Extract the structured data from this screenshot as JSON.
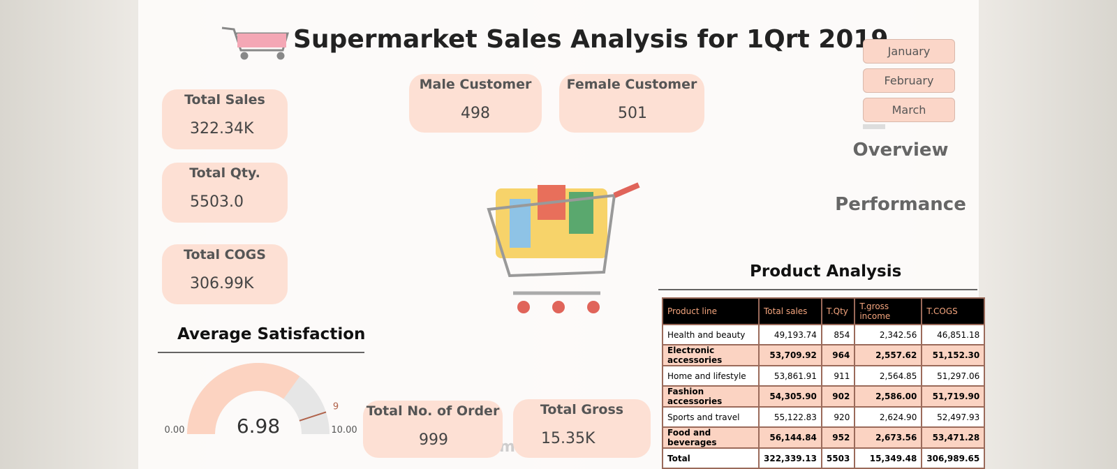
{
  "header": {
    "title": "Supermarket Sales Analysis for 1Qrt 2019"
  },
  "kpis": [
    {
      "label": "Total Sales",
      "value": "322.34K"
    },
    {
      "label": "Total Qty.",
      "value": "5503.0"
    },
    {
      "label": "Total COGS",
      "value": "306.99K"
    }
  ],
  "customers": [
    {
      "label": "Male Customer",
      "value": "498"
    },
    {
      "label": "Female Customer",
      "value": "501"
    }
  ],
  "months": [
    "January",
    "February",
    "March"
  ],
  "nav": [
    "Overview",
    "Performance"
  ],
  "satisfaction": {
    "title": "Average Satisfaction",
    "value": 6.98,
    "min": {
      "value": 0,
      "label": "0.00"
    },
    "max": {
      "value": 10,
      "label": "10.00"
    },
    "target": 9
  },
  "orders": {
    "label": "Total No. of Order",
    "value": "999"
  },
  "gross": {
    "label": "Total Gross",
    "value": "15.35K"
  },
  "product": {
    "title": "Product Analysis",
    "columns": [
      "Product line",
      "Total sales",
      "T.Qty",
      "T.gross income",
      "T.COGS"
    ],
    "rows": [
      [
        "Health and beauty",
        "49,193.74",
        "854",
        "2,342.56",
        "46,851.18"
      ],
      [
        "Electronic accessories",
        "53,709.92",
        "964",
        "2,557.62",
        "51,152.30"
      ],
      [
        "Home and lifestyle",
        "53,861.91",
        "911",
        "2,564.85",
        "51,297.06"
      ],
      [
        "Fashion accessories",
        "54,305.90",
        "902",
        "2,586.00",
        "51,719.90"
      ],
      [
        "Sports and travel",
        "55,122.83",
        "920",
        "2,624.90",
        "52,497.93"
      ],
      [
        "Food and beverages",
        "56,144.84",
        "952",
        "2,673.56",
        "53,471.28"
      ],
      [
        "Total",
        "322,339.13",
        "5503",
        "15,349.48",
        "306,989.65"
      ]
    ]
  },
  "watermark": "mostaql.com"
}
